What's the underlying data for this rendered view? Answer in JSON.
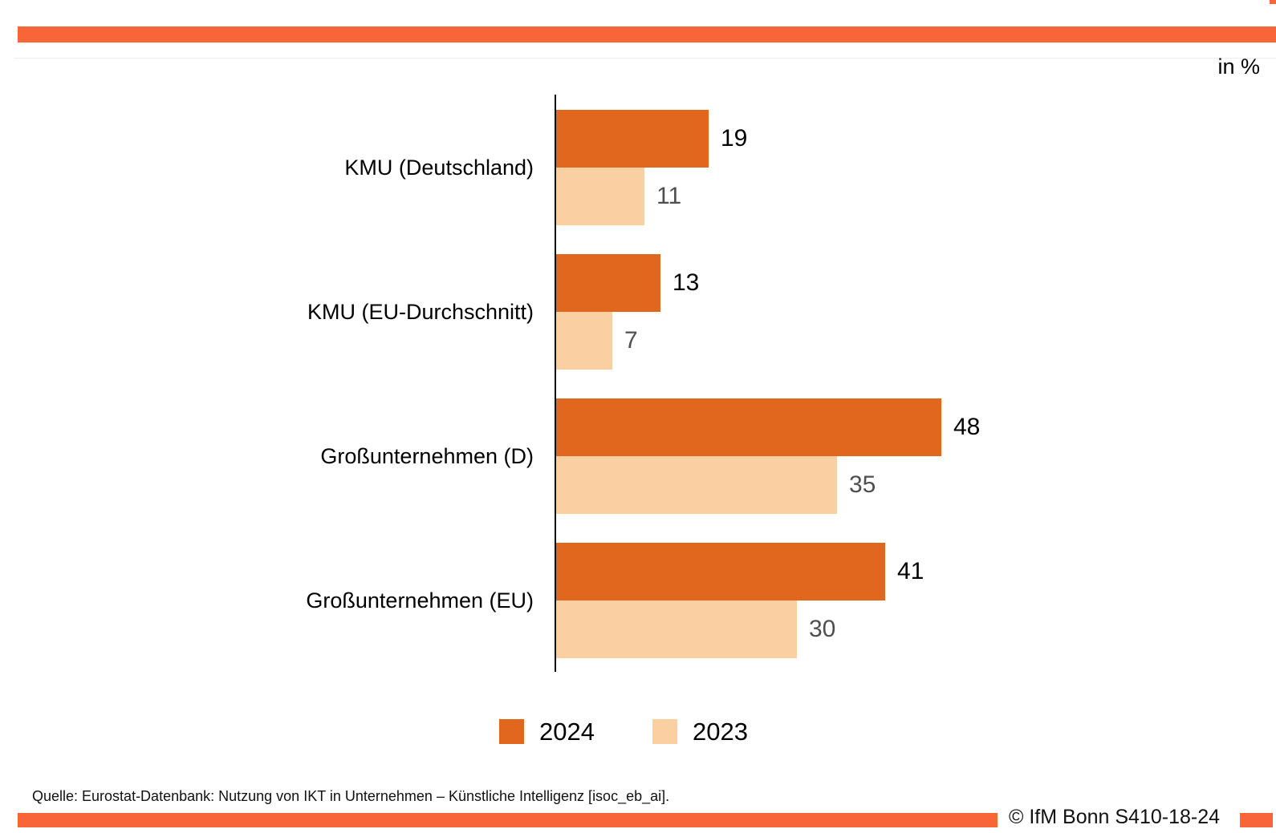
{
  "colors": {
    "accent_band": "#F76538",
    "axis": "#0A0A0A"
  },
  "chart_data": {
    "type": "bar",
    "orientation": "horizontal",
    "unit_label": "in %",
    "categories": [
      "KMU (Deutschland)",
      "KMU (EU-Durchschnitt)",
      "Großunternehmen (D)",
      "Großunternehmen (EU)"
    ],
    "series": [
      {
        "name": "2024",
        "color": "#E1671E",
        "label_color": "#000000",
        "values": [
          19,
          13,
          48,
          41
        ]
      },
      {
        "name": "2023",
        "color": "#FACFA2",
        "label_color": "#4F4F4F",
        "values": [
          11,
          7,
          35,
          30
        ]
      }
    ],
    "xlim": [
      0,
      50
    ],
    "grid": false,
    "value_labels": true,
    "legend_position": "bottom"
  },
  "footer": {
    "source": "Quelle: Eurostat-Datenbank: Nutzung von IKT in Unternehmen – Künstliche Intelligenz [isoc_eb_ai].",
    "copyright": "© IfM Bonn S410-18-24"
  }
}
